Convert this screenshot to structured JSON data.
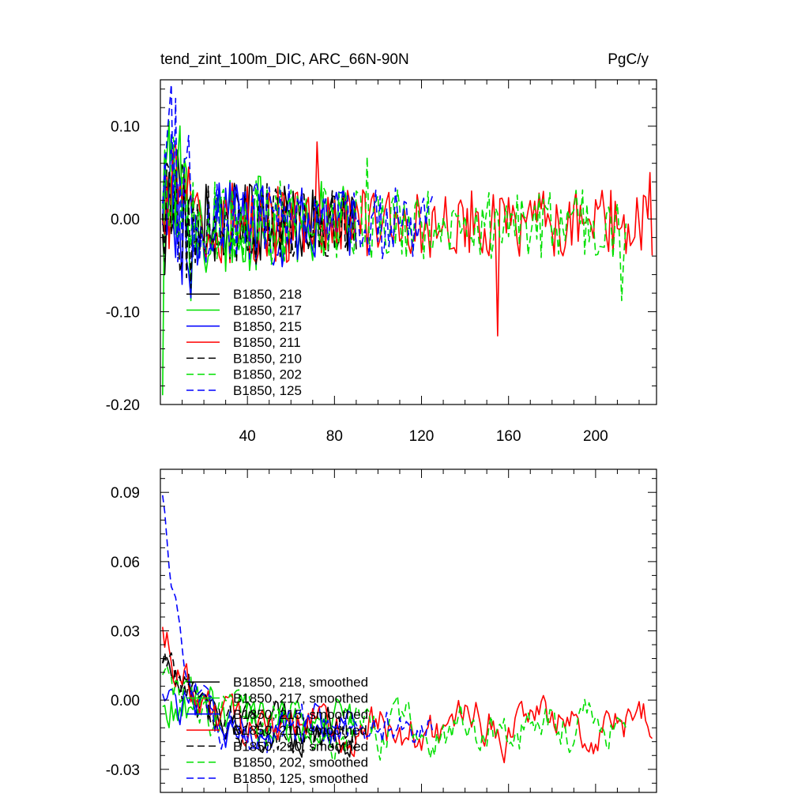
{
  "chart_data": [
    {
      "type": "line",
      "title_left": "tend_zint_100m_DIC, ARC_66N-90N",
      "title_right": "PgC/y",
      "xlim": [
        0,
        228
      ],
      "ylim": [
        -0.2,
        0.15
      ],
      "x_ticks": [
        40,
        80,
        120,
        160,
        200
      ],
      "x_tick_labels": [
        "40",
        "80",
        "120",
        "160",
        "200"
      ],
      "y_ticks": [
        -0.2,
        -0.1,
        0.0,
        0.1
      ],
      "y_tick_labels": [
        "-0.20",
        "-0.10",
        "0.00",
        "0.10"
      ],
      "legend_position": "bottom-left",
      "series": [
        {
          "name": "B1850, 218",
          "color": "#000000",
          "dash": "solid",
          "length": 90,
          "noise": 0.028,
          "spikes": [
            [
              2,
              -0.06
            ],
            [
              4,
              0.05
            ]
          ]
        },
        {
          "name": "B1850, 217",
          "color": "#00e000",
          "dash": "solid",
          "length": 90,
          "noise": 0.035,
          "spikes": [
            [
              1,
              -0.19
            ],
            [
              3,
              0.07
            ]
          ]
        },
        {
          "name": "B1850, 215",
          "color": "#0000ff",
          "dash": "solid",
          "length": 90,
          "noise": 0.03,
          "spikes": [
            [
              2,
              0.07
            ],
            [
              14,
              -0.085
            ]
          ]
        },
        {
          "name": "B1850, 211",
          "color": "#ff0000",
          "dash": "solid",
          "length": 226,
          "noise": 0.028,
          "spikes": [
            [
              72,
              0.083
            ],
            [
              155,
              -0.126
            ],
            [
              225,
              0.05
            ]
          ]
        },
        {
          "name": "B1850, 210",
          "color": "#000000",
          "dash": "dashed",
          "length": 90,
          "noise": 0.028,
          "spikes": [
            [
              3,
              0.06
            ]
          ]
        },
        {
          "name": "B1850, 202",
          "color": "#00e000",
          "dash": "dashed",
          "length": 214,
          "noise": 0.03,
          "spikes": [
            [
              95,
              0.067
            ],
            [
              212,
              -0.088
            ]
          ]
        },
        {
          "name": "B1850, 125",
          "color": "#0000ff",
          "dash": "dashed",
          "length": 125,
          "noise": 0.03,
          "spikes": [
            [
              5,
              0.145
            ],
            [
              7,
              0.13
            ],
            [
              4,
              0.115
            ],
            [
              13,
              0.09
            ]
          ]
        }
      ]
    },
    {
      "type": "line",
      "title_left": "",
      "title_right": "",
      "xlim": [
        0,
        228
      ],
      "ylim": [
        -0.04,
        0.1
      ],
      "x_ticks": [
        40,
        80,
        120,
        160,
        200
      ],
      "x_tick_labels": [
        "",
        "",
        "",
        "",
        ""
      ],
      "y_ticks": [
        -0.03,
        0.0,
        0.03,
        0.06,
        0.09
      ],
      "y_tick_labels": [
        "-0.03",
        "0.00",
        "0.03",
        "0.06",
        "0.09"
      ],
      "legend_position": "bottom-left",
      "series": [
        {
          "name": "B1850, 218, smoothed",
          "color": "#000000",
          "dash": "solid",
          "length": 90,
          "noise": 0.009,
          "start": 0.02
        },
        {
          "name": "B1850, 217, smoothed",
          "color": "#00e000",
          "dash": "solid",
          "length": 90,
          "noise": 0.01,
          "start": 0.0
        },
        {
          "name": "B1850, 215, smoothed",
          "color": "#0000ff",
          "dash": "solid",
          "length": 90,
          "noise": 0.009,
          "start": 0.005
        },
        {
          "name": "B1850, 211, smoothed",
          "color": "#ff0000",
          "dash": "solid",
          "length": 226,
          "noise": 0.01,
          "start": 0.035
        },
        {
          "name": "B1850, 210, smoothed",
          "color": "#000000",
          "dash": "dashed",
          "length": 90,
          "noise": 0.009,
          "start": 0.018
        },
        {
          "name": "B1850, 202, smoothed",
          "color": "#00e000",
          "dash": "dashed",
          "length": 214,
          "noise": 0.01,
          "start": 0.012
        },
        {
          "name": "B1850, 125, smoothed",
          "color": "#0000ff",
          "dash": "dashed",
          "length": 125,
          "noise": 0.008,
          "start": 0.093
        }
      ]
    }
  ]
}
